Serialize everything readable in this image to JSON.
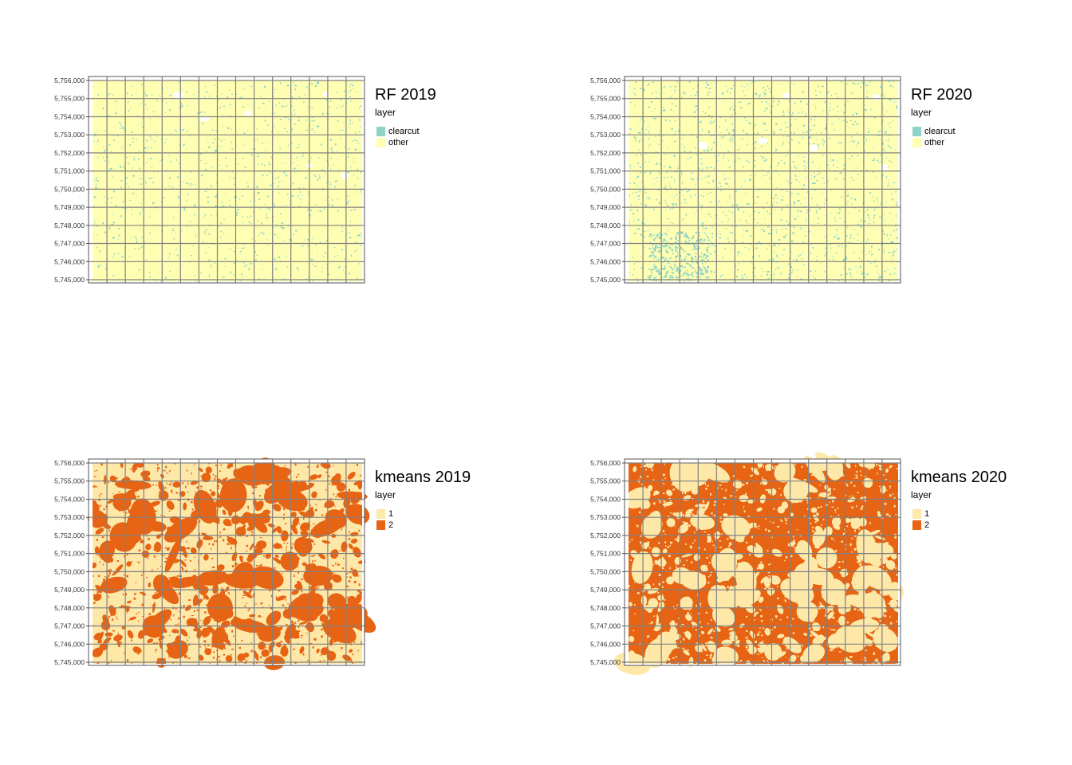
{
  "y_axis_ticks": [
    "5,756,000",
    "5,755,000",
    "5,754,000",
    "5,753,000",
    "5,752,000",
    "5,751,000",
    "5,750,000",
    "5,749,000",
    "5,748,000",
    "5,747,000",
    "5,746,000",
    "5,745,000"
  ],
  "panels": [
    {
      "title": "RF 2019",
      "legend_title": "layer",
      "classes": [
        {
          "label": "clearcut",
          "color": "#8dd3c7"
        },
        {
          "label": "other",
          "color": "#ffffb3"
        }
      ],
      "fill_color": "#ffffb3",
      "patch_color": "#8dd3c7",
      "dominant_class": "other"
    },
    {
      "title": "RF 2020",
      "legend_title": "layer",
      "classes": [
        {
          "label": "clearcut",
          "color": "#8dd3c7"
        },
        {
          "label": "other",
          "color": "#ffffb3"
        }
      ],
      "fill_color": "#ffffb3",
      "patch_color": "#8dd3c7",
      "dominant_class": "other"
    },
    {
      "title": "kmeans 2019",
      "legend_title": "layer",
      "classes": [
        {
          "label": "1",
          "color": "#fee8a8"
        },
        {
          "label": "2",
          "color": "#e66414"
        }
      ],
      "fill_color": "#fee8a8",
      "patch_color": "#e66414",
      "dominant_class": "mixed"
    },
    {
      "title": "kmeans 2020",
      "legend_title": "layer",
      "classes": [
        {
          "label": "1",
          "color": "#fee8a8"
        },
        {
          "label": "2",
          "color": "#e66414"
        }
      ],
      "fill_color": "#e66414",
      "patch_color": "#fee8a8",
      "dominant_class": "2"
    }
  ],
  "grid_color": "#808080"
}
